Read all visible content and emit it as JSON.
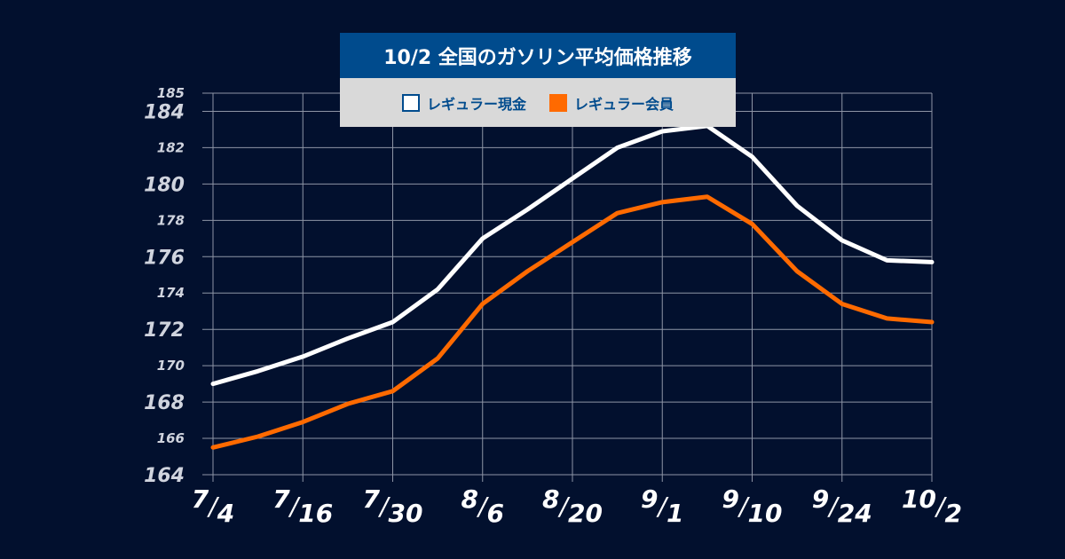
{
  "chart_data": {
    "type": "line",
    "title": "10/2 全国のガソリン平均価格推移",
    "xlabel": "",
    "ylabel": "",
    "ylim": [
      164,
      185
    ],
    "yticks": [
      164,
      166,
      168,
      170,
      172,
      174,
      176,
      178,
      180,
      182,
      184,
      185
    ],
    "x_tick_labels": [
      {
        "m": "7",
        "d": "4"
      },
      {
        "m": "7",
        "d": "16"
      },
      {
        "m": "7",
        "d": "30"
      },
      {
        "m": "8",
        "d": "6"
      },
      {
        "m": "8",
        "d": "20"
      },
      {
        "m": "9",
        "d": "1"
      },
      {
        "m": "9",
        "d": "10"
      },
      {
        "m": "9",
        "d": "24"
      },
      {
        "m": "10",
        "d": "2"
      }
    ],
    "grid": true,
    "legend_position": "top-center",
    "series": [
      {
        "name": "レギュラー現金",
        "color": "#ffffff",
        "values": [
          169.0,
          169.7,
          170.5,
          171.5,
          172.4,
          174.2,
          177.0,
          178.6,
          180.3,
          182.0,
          182.9,
          183.2,
          181.5,
          178.8,
          176.9,
          175.8,
          175.7
        ]
      },
      {
        "name": "レギュラー会員",
        "color": "#ff6a00",
        "values": [
          165.5,
          166.1,
          166.9,
          167.9,
          168.6,
          170.4,
          173.4,
          175.2,
          176.8,
          178.4,
          179.0,
          179.3,
          177.8,
          175.2,
          173.4,
          172.6,
          172.4
        ]
      }
    ]
  }
}
